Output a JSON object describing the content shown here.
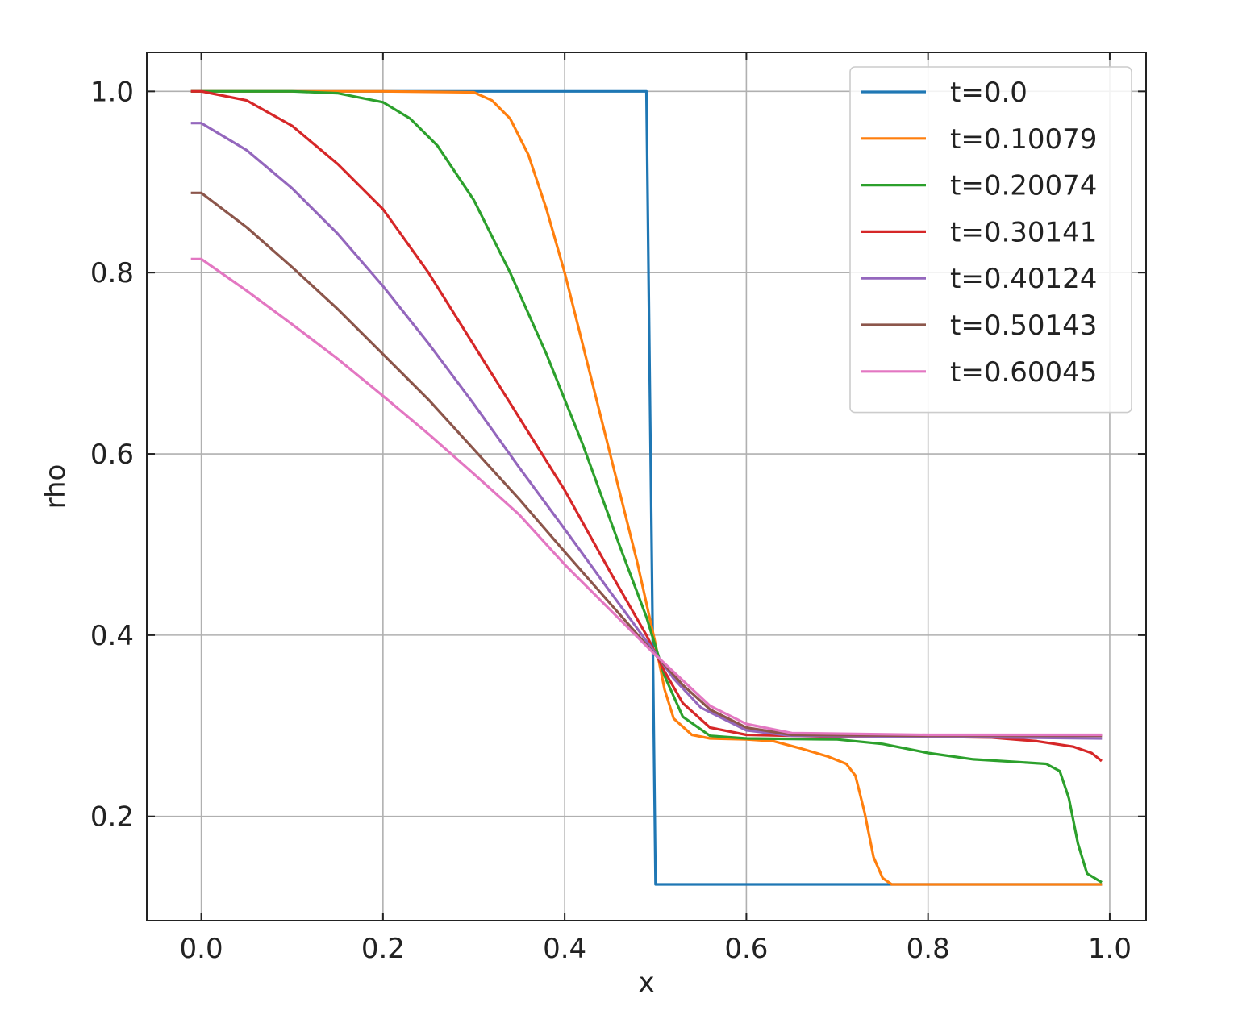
{
  "chart_data": {
    "type": "line",
    "title": "",
    "xlabel": "x",
    "ylabel": "rho",
    "xlim": [
      -0.06,
      1.04
    ],
    "ylim": [
      0.085,
      1.043
    ],
    "grid": true,
    "legend_position": "top-right",
    "xticks": [
      0.0,
      0.2,
      0.4,
      0.6,
      0.8,
      1.0
    ],
    "xtick_labels": [
      "0.0",
      "0.2",
      "0.4",
      "0.6",
      "0.8",
      "1.0"
    ],
    "yticks": [
      0.2,
      0.4,
      0.6,
      0.8,
      1.0
    ],
    "ytick_labels": [
      "0.2",
      "0.4",
      "0.6",
      "0.8",
      "1.0"
    ],
    "series": [
      {
        "name": "t=0.0",
        "color": "#1f77b4",
        "points": [
          [
            -0.01,
            1.0
          ],
          [
            0.49,
            1.0
          ],
          [
            0.5,
            0.125
          ],
          [
            0.99,
            0.125
          ]
        ]
      },
      {
        "name": "t=0.10079",
        "color": "#ff7f0e",
        "points": [
          [
            -0.01,
            1.0
          ],
          [
            0.2,
            1.0
          ],
          [
            0.3,
            0.999
          ],
          [
            0.32,
            0.99
          ],
          [
            0.34,
            0.97
          ],
          [
            0.36,
            0.93
          ],
          [
            0.38,
            0.87
          ],
          [
            0.4,
            0.8
          ],
          [
            0.42,
            0.72
          ],
          [
            0.44,
            0.64
          ],
          [
            0.46,
            0.56
          ],
          [
            0.48,
            0.48
          ],
          [
            0.5,
            0.39
          ],
          [
            0.51,
            0.34
          ],
          [
            0.52,
            0.308
          ],
          [
            0.54,
            0.29
          ],
          [
            0.56,
            0.286
          ],
          [
            0.6,
            0.285
          ],
          [
            0.63,
            0.283
          ],
          [
            0.66,
            0.275
          ],
          [
            0.69,
            0.266
          ],
          [
            0.71,
            0.258
          ],
          [
            0.72,
            0.245
          ],
          [
            0.73,
            0.205
          ],
          [
            0.74,
            0.155
          ],
          [
            0.75,
            0.132
          ],
          [
            0.76,
            0.125
          ],
          [
            0.99,
            0.125
          ]
        ]
      },
      {
        "name": "t=0.20074",
        "color": "#2ca02c",
        "points": [
          [
            -0.01,
            1.0
          ],
          [
            0.1,
            1.0
          ],
          [
            0.15,
            0.998
          ],
          [
            0.2,
            0.988
          ],
          [
            0.23,
            0.97
          ],
          [
            0.26,
            0.94
          ],
          [
            0.3,
            0.88
          ],
          [
            0.34,
            0.8
          ],
          [
            0.38,
            0.71
          ],
          [
            0.42,
            0.61
          ],
          [
            0.46,
            0.5
          ],
          [
            0.49,
            0.42
          ],
          [
            0.51,
            0.355
          ],
          [
            0.53,
            0.31
          ],
          [
            0.56,
            0.289
          ],
          [
            0.6,
            0.286
          ],
          [
            0.7,
            0.285
          ],
          [
            0.75,
            0.28
          ],
          [
            0.8,
            0.27
          ],
          [
            0.85,
            0.263
          ],
          [
            0.9,
            0.26
          ],
          [
            0.93,
            0.258
          ],
          [
            0.945,
            0.25
          ],
          [
            0.955,
            0.22
          ],
          [
            0.965,
            0.17
          ],
          [
            0.975,
            0.137
          ],
          [
            0.99,
            0.128
          ]
        ]
      },
      {
        "name": "t=0.30141",
        "color": "#d62728",
        "points": [
          [
            -0.01,
            1.0
          ],
          [
            0.0,
            1.0
          ],
          [
            0.05,
            0.99
          ],
          [
            0.1,
            0.962
          ],
          [
            0.15,
            0.92
          ],
          [
            0.2,
            0.87
          ],
          [
            0.25,
            0.8
          ],
          [
            0.3,
            0.72
          ],
          [
            0.35,
            0.64
          ],
          [
            0.4,
            0.56
          ],
          [
            0.45,
            0.47
          ],
          [
            0.49,
            0.4
          ],
          [
            0.51,
            0.36
          ],
          [
            0.53,
            0.325
          ],
          [
            0.56,
            0.298
          ],
          [
            0.6,
            0.29
          ],
          [
            0.7,
            0.288
          ],
          [
            0.8,
            0.288
          ],
          [
            0.87,
            0.287
          ],
          [
            0.92,
            0.283
          ],
          [
            0.96,
            0.277
          ],
          [
            0.98,
            0.27
          ],
          [
            0.99,
            0.262
          ]
        ]
      },
      {
        "name": "t=0.40124",
        "color": "#9467bd",
        "points": [
          [
            -0.01,
            0.965
          ],
          [
            0.0,
            0.965
          ],
          [
            0.05,
            0.935
          ],
          [
            0.1,
            0.893
          ],
          [
            0.15,
            0.843
          ],
          [
            0.2,
            0.785
          ],
          [
            0.25,
            0.722
          ],
          [
            0.3,
            0.655
          ],
          [
            0.35,
            0.585
          ],
          [
            0.4,
            0.517
          ],
          [
            0.45,
            0.448
          ],
          [
            0.5,
            0.38
          ],
          [
            0.52,
            0.352
          ],
          [
            0.55,
            0.32
          ],
          [
            0.6,
            0.295
          ],
          [
            0.65,
            0.289
          ],
          [
            0.8,
            0.288
          ],
          [
            0.99,
            0.286
          ]
        ]
      },
      {
        "name": "t=0.50143",
        "color": "#8c564b",
        "points": [
          [
            -0.01,
            0.888
          ],
          [
            0.0,
            0.888
          ],
          [
            0.05,
            0.85
          ],
          [
            0.1,
            0.806
          ],
          [
            0.15,
            0.76
          ],
          [
            0.2,
            0.71
          ],
          [
            0.25,
            0.66
          ],
          [
            0.3,
            0.605
          ],
          [
            0.35,
            0.55
          ],
          [
            0.4,
            0.492
          ],
          [
            0.45,
            0.435
          ],
          [
            0.5,
            0.378
          ],
          [
            0.53,
            0.345
          ],
          [
            0.56,
            0.318
          ],
          [
            0.6,
            0.298
          ],
          [
            0.65,
            0.29
          ],
          [
            0.8,
            0.289
          ],
          [
            0.99,
            0.289
          ]
        ]
      },
      {
        "name": "t=0.60045",
        "color": "#e377c2",
        "points": [
          [
            -0.01,
            0.815
          ],
          [
            0.0,
            0.815
          ],
          [
            0.05,
            0.78
          ],
          [
            0.1,
            0.743
          ],
          [
            0.15,
            0.705
          ],
          [
            0.2,
            0.664
          ],
          [
            0.25,
            0.622
          ],
          [
            0.3,
            0.578
          ],
          [
            0.35,
            0.533
          ],
          [
            0.4,
            0.478
          ],
          [
            0.45,
            0.428
          ],
          [
            0.5,
            0.378
          ],
          [
            0.53,
            0.35
          ],
          [
            0.56,
            0.322
          ],
          [
            0.6,
            0.302
          ],
          [
            0.65,
            0.292
          ],
          [
            0.8,
            0.29
          ],
          [
            0.99,
            0.29
          ]
        ]
      }
    ]
  }
}
